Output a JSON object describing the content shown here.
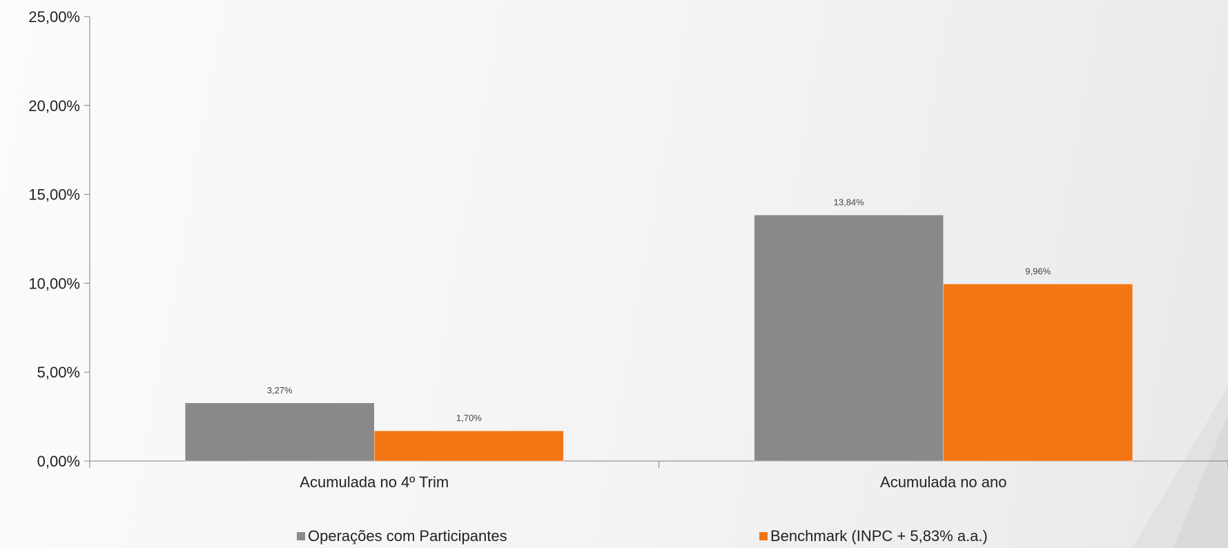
{
  "colors": {
    "series_0": "#898989",
    "series_1": "#f27613",
    "axis": "#7f7f7f"
  },
  "chart_data": {
    "type": "bar",
    "categories": [
      "Acumulada no 4º Trim",
      "Acumulada no ano"
    ],
    "series": [
      {
        "name": "Operações com Participantes",
        "values": [
          3.27,
          13.84
        ],
        "labels": [
          "3,27%",
          "13,84%"
        ]
      },
      {
        "name": "Benchmark (INPC + 5,83% a.a.)",
        "values": [
          1.7,
          9.96
        ],
        "labels": [
          "1,70%",
          "9,96%"
        ]
      }
    ],
    "ylim": [
      0,
      25
    ],
    "yticks": [
      0,
      5,
      10,
      15,
      20,
      25
    ],
    "ytick_labels": [
      "0,00%",
      "5,00%",
      "10,00%",
      "15,00%",
      "20,00%",
      "25,00%"
    ],
    "title": "",
    "xlabel": "",
    "ylabel": "",
    "grid": false,
    "legend_position": "bottom"
  }
}
